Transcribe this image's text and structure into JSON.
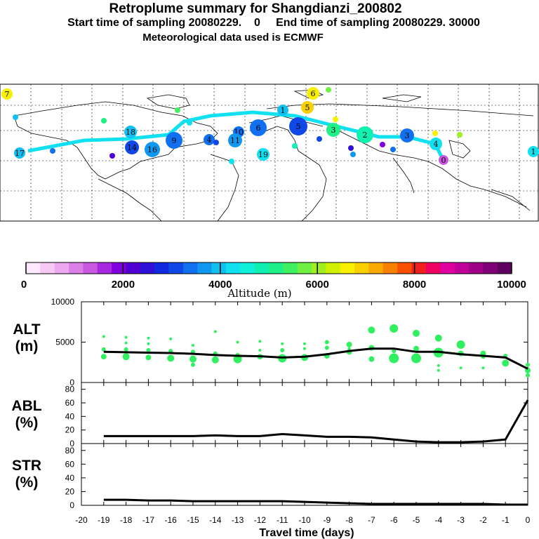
{
  "header": {
    "title": "Retroplume summary for Shangdianzi_200802",
    "sampling": "Start time of sampling 20080229.    0     End time of sampling 20080229. 30000",
    "met": "Meteorological data used is ECMWF"
  },
  "colors": {
    "track": "#10e0f0",
    "alt_points": "#30f060",
    "line": "#000000",
    "colorbar": [
      "#fde8fd",
      "#f6c8f6",
      "#eba8f0",
      "#dc80e8",
      "#c858e0",
      "#a828e0",
      "#8000e0",
      "#5000d0",
      "#3010d8",
      "#1028e0",
      "#1048e8",
      "#1070f0",
      "#1098f0",
      "#10c0f0",
      "#10e0f0",
      "#10f0d8",
      "#10f0b0",
      "#20f088",
      "#40f060",
      "#70f040",
      "#a0f020",
      "#d0f000",
      "#f8f000",
      "#f8d000",
      "#f8a800",
      "#f88000",
      "#f85000",
      "#f02020",
      "#f00060",
      "#e000a0",
      "#c00098",
      "#a00088",
      "#800078",
      "#600060"
    ]
  },
  "map": {
    "labels": [
      {
        "text": "7",
        "color": "#f8f000"
      },
      {
        "text": "6",
        "color": "#f8f000"
      },
      {
        "text": "5",
        "color": "#f8d000"
      },
      {
        "text": "4",
        "color": "#10e0f0"
      },
      {
        "text": "3",
        "color": "#1070f0"
      },
      {
        "text": "2",
        "color": "#10f0b0"
      },
      {
        "text": "1",
        "color": "#10e0f0"
      },
      {
        "text": "16",
        "color": "#1098f0"
      },
      {
        "text": "18",
        "color": "#10c0f0"
      },
      {
        "text": "17",
        "color": "#10c0f0"
      },
      {
        "text": "14",
        "color": "#1048e8"
      },
      {
        "text": "10",
        "color": "#1070f0"
      },
      {
        "text": "9",
        "color": "#1070f0"
      },
      {
        "text": "11",
        "color": "#1098f0"
      },
      {
        "text": "19",
        "color": "#10e0f0"
      },
      {
        "text": "0",
        "color": "#c858e0"
      },
      {
        "text": "6",
        "color": "#1070f0"
      },
      {
        "text": "5",
        "color": "#1048e8"
      },
      {
        "text": "3",
        "color": "#20f088"
      },
      {
        "text": "4",
        "color": "#1070f0"
      },
      {
        "text": "1",
        "color": "#10c0f0"
      }
    ]
  },
  "colorbar": {
    "ticks": [
      "0",
      "2000",
      "4000",
      "6000",
      "8000",
      "10000"
    ],
    "label": "Altitude (m)"
  },
  "panels": {
    "alt": {
      "label1": "ALT",
      "label2": "(m)"
    },
    "abl": {
      "label1": "ABL",
      "label2": "(%)"
    },
    "str": {
      "label1": "STR",
      "label2": "(%)"
    }
  },
  "chart_data": [
    {
      "type": "scatter",
      "name": "ALT",
      "ylabel": "ALT (m)",
      "ylim": [
        0,
        10000
      ],
      "yticks": [
        "0",
        "5000",
        "10000"
      ],
      "x": [
        -19,
        -18,
        -17,
        -16,
        -15,
        -14,
        -13,
        -12,
        -11,
        -10,
        -9,
        -8,
        -7,
        -6,
        -5,
        -4,
        -3,
        -2,
        -1,
        0
      ],
      "values": [
        3800,
        3750,
        3700,
        3650,
        3550,
        3400,
        3300,
        3250,
        3100,
        3200,
        3500,
        3900,
        4200,
        4200,
        3800,
        3800,
        3500,
        3300,
        3100,
        1700
      ],
      "points": [
        {
          "x": -19,
          "y": 3200,
          "s": 4
        },
        {
          "x": -19,
          "y": 4100,
          "s": 3
        },
        {
          "x": -19,
          "y": 5700,
          "s": 2
        },
        {
          "x": -18,
          "y": 3200,
          "s": 5
        },
        {
          "x": -18,
          "y": 4100,
          "s": 3
        },
        {
          "x": -18,
          "y": 4900,
          "s": 2
        },
        {
          "x": -18,
          "y": 5600,
          "s": 2
        },
        {
          "x": -17,
          "y": 3100,
          "s": 4
        },
        {
          "x": -17,
          "y": 4000,
          "s": 3
        },
        {
          "x": -17,
          "y": 4800,
          "s": 2
        },
        {
          "x": -17,
          "y": 5500,
          "s": 2
        },
        {
          "x": -16,
          "y": 3000,
          "s": 5
        },
        {
          "x": -16,
          "y": 3900,
          "s": 3
        },
        {
          "x": -16,
          "y": 5400,
          "s": 2
        },
        {
          "x": -15,
          "y": 2900,
          "s": 5
        },
        {
          "x": -15,
          "y": 3800,
          "s": 3
        },
        {
          "x": -15,
          "y": 4600,
          "s": 2
        },
        {
          "x": -15,
          "y": 2200,
          "s": 3
        },
        {
          "x": -14,
          "y": 2800,
          "s": 5
        },
        {
          "x": -14,
          "y": 3600,
          "s": 3
        },
        {
          "x": -14,
          "y": 6300,
          "s": 2
        },
        {
          "x": -13,
          "y": 2900,
          "s": 6
        },
        {
          "x": -13,
          "y": 3400,
          "s": 3
        },
        {
          "x": -13,
          "y": 5000,
          "s": 2
        },
        {
          "x": -12,
          "y": 3200,
          "s": 4
        },
        {
          "x": -12,
          "y": 4000,
          "s": 2
        },
        {
          "x": -12,
          "y": 5100,
          "s": 2
        },
        {
          "x": -11,
          "y": 3000,
          "s": 6
        },
        {
          "x": -11,
          "y": 4000,
          "s": 3
        },
        {
          "x": -11,
          "y": 4800,
          "s": 2
        },
        {
          "x": -10,
          "y": 3100,
          "s": 5
        },
        {
          "x": -10,
          "y": 4200,
          "s": 2
        },
        {
          "x": -10,
          "y": 4800,
          "s": 2
        },
        {
          "x": -9,
          "y": 3300,
          "s": 4
        },
        {
          "x": -9,
          "y": 4300,
          "s": 3
        },
        {
          "x": -9,
          "y": 5000,
          "s": 3
        },
        {
          "x": -8,
          "y": 3800,
          "s": 4
        },
        {
          "x": -8,
          "y": 4700,
          "s": 4
        },
        {
          "x": -8,
          "y": 4200,
          "s": 2
        },
        {
          "x": -7,
          "y": 2900,
          "s": 4
        },
        {
          "x": -7,
          "y": 4300,
          "s": 4
        },
        {
          "x": -7,
          "y": 6500,
          "s": 5
        },
        {
          "x": -6,
          "y": 3000,
          "s": 7
        },
        {
          "x": -6,
          "y": 3900,
          "s": 3
        },
        {
          "x": -6,
          "y": 6700,
          "s": 6
        },
        {
          "x": -5,
          "y": 3000,
          "s": 7
        },
        {
          "x": -5,
          "y": 4200,
          "s": 4
        },
        {
          "x": -5,
          "y": 6100,
          "s": 5
        },
        {
          "x": -4,
          "y": 3700,
          "s": 7
        },
        {
          "x": -4,
          "y": 5500,
          "s": 5
        },
        {
          "x": -4,
          "y": 1500,
          "s": 2
        },
        {
          "x": -4,
          "y": 2100,
          "s": 2
        },
        {
          "x": -3,
          "y": 3600,
          "s": 4
        },
        {
          "x": -3,
          "y": 4700,
          "s": 6
        },
        {
          "x": -3,
          "y": 1800,
          "s": 2
        },
        {
          "x": -2,
          "y": 3600,
          "s": 4
        },
        {
          "x": -2,
          "y": 3200,
          "s": 3
        },
        {
          "x": -2,
          "y": 1800,
          "s": 2
        },
        {
          "x": -1,
          "y": 2400,
          "s": 5
        },
        {
          "x": -1,
          "y": 3300,
          "s": 3
        },
        {
          "x": 0,
          "y": 900,
          "s": 3
        },
        {
          "x": 0,
          "y": 1500,
          "s": 4
        },
        {
          "x": 0,
          "y": 2200,
          "s": 3
        }
      ]
    },
    {
      "type": "line",
      "name": "ABL",
      "ylabel": "ABL (%)",
      "ylim": [
        0,
        90
      ],
      "yticks": [
        "0",
        "20",
        "40",
        "60",
        "80"
      ],
      "x": [
        -19,
        -18,
        -17,
        -16,
        -15,
        -14,
        -13,
        -12,
        -11,
        -10,
        -9,
        -8,
        -7,
        -6,
        -5,
        -4,
        -3,
        -2,
        -1,
        0
      ],
      "values": [
        11,
        11,
        11,
        11,
        11,
        12,
        11,
        11,
        14,
        12,
        10,
        10,
        9,
        6,
        3,
        2,
        2,
        3,
        6,
        64
      ]
    },
    {
      "type": "line",
      "name": "STR",
      "ylabel": "STR (%)",
      "ylim": [
        0,
        90
      ],
      "yticks": [
        "0",
        "20",
        "40",
        "60",
        "80"
      ],
      "x": [
        -19,
        -18,
        -17,
        -16,
        -15,
        -14,
        -13,
        -12,
        -11,
        -10,
        -9,
        -8,
        -7,
        -6,
        -5,
        -4,
        -3,
        -2,
        -1,
        0
      ],
      "values": [
        8,
        8,
        7,
        7,
        6,
        6,
        6,
        6,
        6,
        5,
        4,
        3,
        2,
        2,
        2,
        2,
        2,
        2,
        1,
        1
      ]
    },
    {
      "type": "axis",
      "name": "x-axis",
      "xlabel": "Travel time (days)",
      "xlim": [
        -20,
        0
      ],
      "xticks": [
        "-20",
        "-19",
        "-18",
        "-17",
        "-16",
        "-15",
        "-14",
        "-13",
        "-12",
        "-11",
        "-10",
        "-9",
        "-8",
        "-7",
        "-6",
        "-5",
        "-4",
        "-3",
        "-2",
        "-1",
        "0"
      ]
    }
  ]
}
